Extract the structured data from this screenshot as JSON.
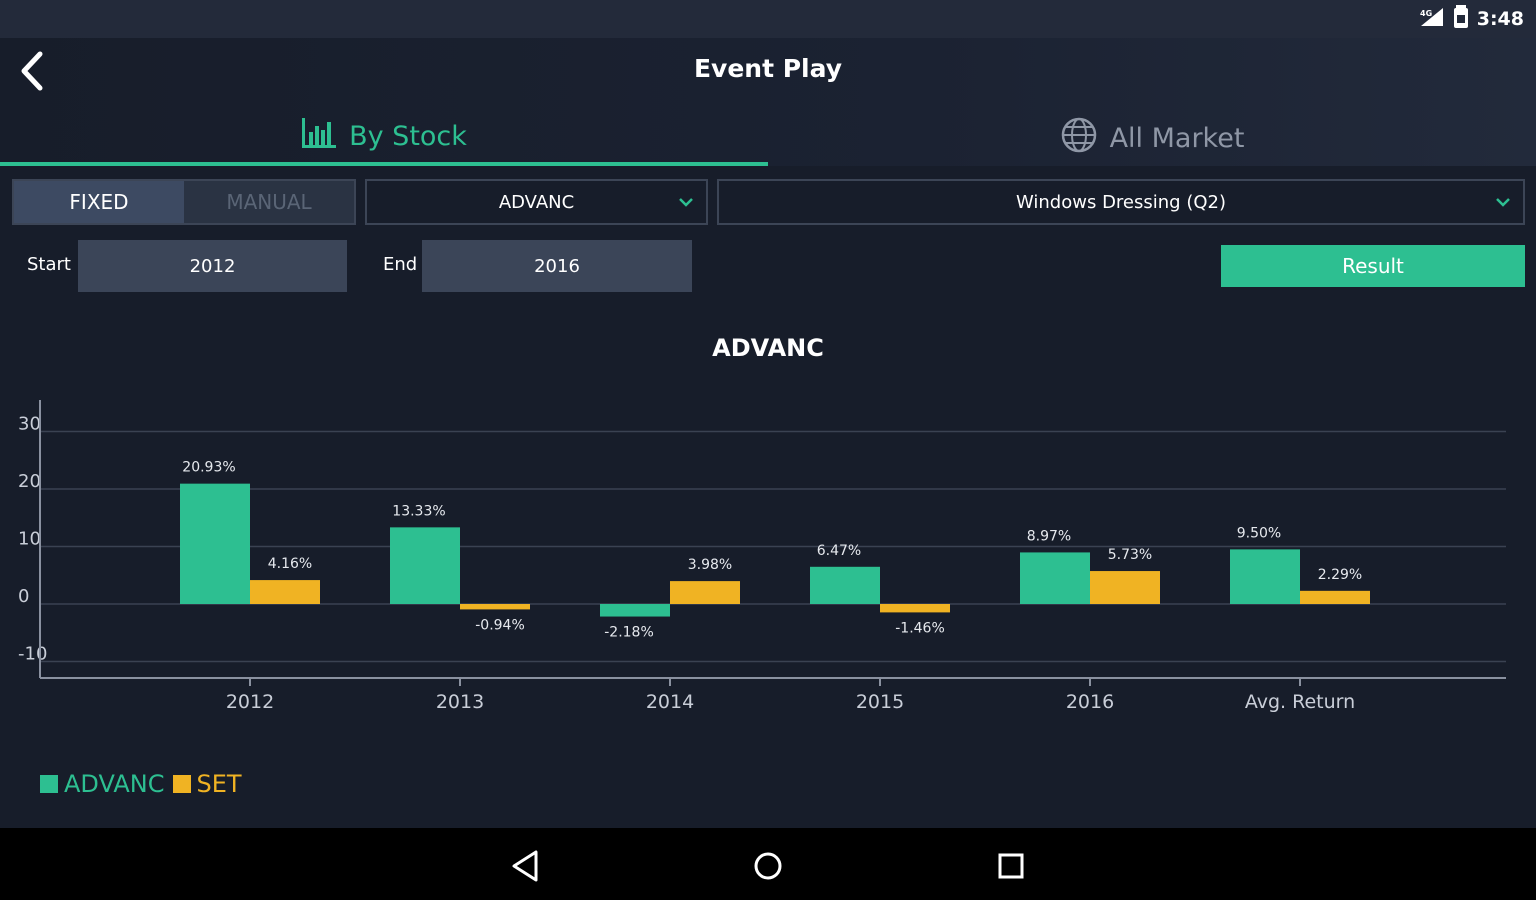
{
  "status": {
    "time": "3:48",
    "network_label": "4G"
  },
  "header": {
    "title": "Event Play"
  },
  "tabs": [
    {
      "label": "By Stock",
      "icon": "bar-chart-icon",
      "active": true
    },
    {
      "label": "All Market",
      "icon": "globe-icon",
      "active": false
    }
  ],
  "mode": {
    "options": [
      "FIXED",
      "MANUAL"
    ],
    "selected": "FIXED"
  },
  "stock_select": {
    "value": "ADVANC"
  },
  "event_select": {
    "value": "Windows Dressing (Q2)"
  },
  "range": {
    "start_label": "Start",
    "start_value": "2012",
    "end_label": "End",
    "end_value": "2016"
  },
  "result_label": "Result",
  "colors": {
    "accent": "#2dbf91",
    "set": "#f0b323"
  },
  "chart_data": {
    "type": "bar",
    "title": "ADVANC",
    "categories": [
      "2012",
      "2013",
      "2014",
      "2015",
      "2016",
      "Avg. Return"
    ],
    "series": [
      {
        "name": "ADVANC",
        "color": "#2dbf91",
        "values": [
          20.93,
          13.33,
          -2.18,
          6.47,
          8.97,
          9.5
        ],
        "labels": [
          "20.93%",
          "13.33%",
          "-2.18%",
          "6.47%",
          "8.97%",
          "9.50%"
        ]
      },
      {
        "name": "SET",
        "color": "#f0b323",
        "values": [
          4.16,
          -0.94,
          3.98,
          -1.46,
          5.73,
          2.29
        ],
        "labels": [
          "4.16%",
          "-0.94%",
          "3.98%",
          "-1.46%",
          "5.73%",
          "2.29%"
        ]
      }
    ],
    "yticks": [
      "30",
      "20",
      "10",
      "0",
      "-10"
    ],
    "ylim": [
      -10,
      30
    ],
    "grid": true,
    "legend": "bottom-left"
  }
}
